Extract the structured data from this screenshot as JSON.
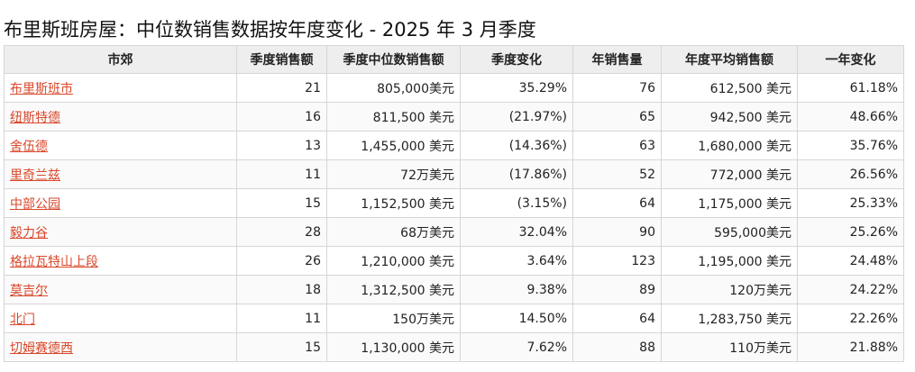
{
  "page": {
    "title": "布里斯班房屋：中位数销售数据按年度变化 - 2025 年 3 月季度"
  },
  "table": {
    "headers": [
      "市郊",
      "季度销售额",
      "季度中位数销售额",
      "季度变化",
      "年销售量",
      "年度平均销售额",
      "一年变化"
    ],
    "rows": [
      [
        "布里斯班市",
        "21",
        "805,000美元",
        "35.29%",
        "76",
        "612,500 美元",
        "61.18%"
      ],
      [
        "纽斯特德",
        "16",
        "811,500 美元",
        "(21.97%)",
        "65",
        "942,500 美元",
        "48.66%"
      ],
      [
        "舍伍德",
        "13",
        "1,455,000 美元",
        "(14.36%)",
        "63",
        "1,680,000 美元",
        "35.76%"
      ],
      [
        "里奇兰兹",
        "11",
        "72万美元",
        "(17.86%)",
        "52",
        "772,000 美元",
        "26.56%"
      ],
      [
        "中部公园",
        "15",
        "1,152,500 美元",
        "(3.15%)",
        "64",
        "1,175,000 美元",
        "25.33%"
      ],
      [
        "毅力谷",
        "28",
        "68万美元",
        "32.04%",
        "90",
        "595,000美元",
        "25.26%"
      ],
      [
        "格拉瓦特山上段",
        "26",
        "1,210,000 美元",
        "3.64%",
        "123",
        "1,195,000 美元",
        "24.48%"
      ],
      [
        "莫吉尔",
        "18",
        "1,312,500 美元",
        "9.38%",
        "89",
        "120万美元",
        "24.22%"
      ],
      [
        "北门",
        "11",
        "150万美元",
        "14.50%",
        "64",
        "1,283,750 美元",
        "22.26%"
      ],
      [
        "切姆赛德西",
        "15",
        "1,130,000 美元",
        "7.62%",
        "88",
        "110万美元",
        "21.88%"
      ]
    ]
  },
  "colors": {
    "link": "#d9482b",
    "header_bg": "#eeeeee",
    "border": "#d6d6d6"
  }
}
